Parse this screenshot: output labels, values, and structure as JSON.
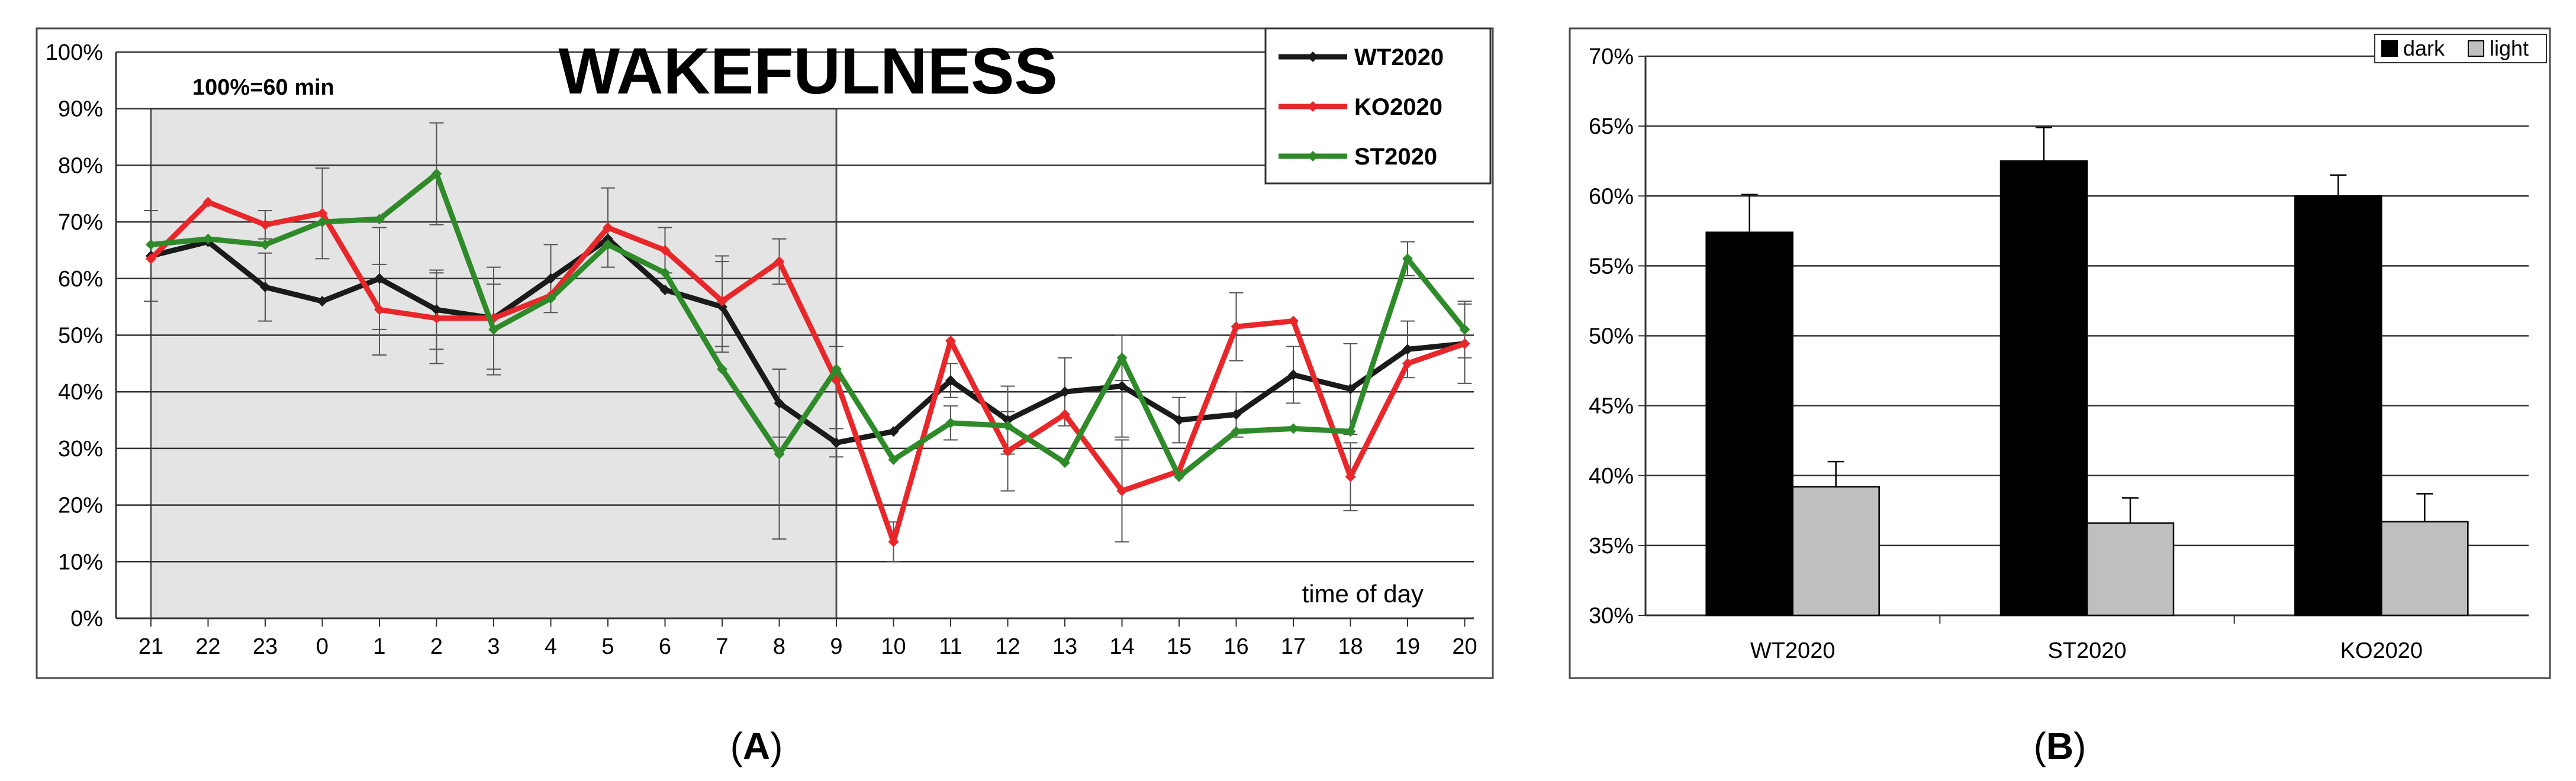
{
  "chart_data": [
    {
      "type": "line",
      "panel_label": "A",
      "title": "WAKEFULNESS",
      "note": "100%=60 min",
      "xlabel": "time of day",
      "ylim": [
        0,
        100
      ],
      "y_ticks": [
        "0%",
        "10%",
        "20%",
        "30%",
        "40%",
        "50%",
        "60%",
        "70%",
        "80%",
        "90%",
        "100%"
      ],
      "categories": [
        "21",
        "22",
        "23",
        "0",
        "1",
        "2",
        "3",
        "4",
        "5",
        "6",
        "7",
        "8",
        "9",
        "10",
        "11",
        "12",
        "13",
        "14",
        "15",
        "16",
        "17",
        "18",
        "19",
        "20"
      ],
      "dark_phase": [
        "21",
        "9"
      ],
      "grid": true,
      "legend_position": "top-right",
      "series": [
        {
          "name": "WT2020",
          "color": "#1a1a1a",
          "marker": "diamond",
          "values": [
            64,
            66.5,
            58.5,
            56,
            60,
            54.5,
            53,
            60,
            67,
            58,
            55,
            38,
            31,
            33,
            42,
            35,
            40,
            41,
            35,
            36,
            43,
            40.5,
            47.5,
            48.5
          ],
          "errors": [
            8,
            0,
            6,
            0,
            9,
            7,
            9,
            6,
            0,
            0,
            8,
            6,
            2.5,
            0,
            3,
            6,
            6,
            9,
            4,
            4,
            5,
            8,
            5,
            7
          ]
        },
        {
          "name": "KO2020",
          "color": "#e8272b",
          "marker": "diamond",
          "values": [
            63.5,
            73.5,
            69.5,
            71.5,
            54.5,
            53,
            53,
            57,
            69,
            65,
            56,
            63,
            42,
            13.5,
            49,
            29.5,
            36,
            22.5,
            26,
            51.5,
            52.5,
            25,
            45,
            48.5
          ],
          "errors": [
            0,
            0,
            2.5,
            8,
            8,
            8,
            0,
            0,
            7,
            4,
            8,
            4,
            0,
            3.5,
            0,
            7,
            0,
            9,
            0,
            6,
            0,
            6,
            0,
            0
          ]
        },
        {
          "name": "ST2020",
          "color": "#2f8a2a",
          "marker": "diamond",
          "values": [
            66,
            67,
            66,
            70,
            70.5,
            78.5,
            51,
            56.5,
            66,
            61,
            44,
            29,
            44,
            28,
            34.5,
            34,
            27.5,
            46,
            25,
            33,
            33.5,
            33,
            63.5,
            51
          ],
          "errors": [
            0,
            0,
            0,
            0,
            0,
            9,
            8,
            0,
            0,
            0,
            0,
            15,
            4,
            0,
            3,
            0,
            0,
            4,
            0,
            0,
            0,
            0,
            3,
            5
          ]
        }
      ]
    },
    {
      "type": "bar",
      "panel_label": "B",
      "categories": [
        "WT2020",
        "ST2020",
        "KO2020"
      ],
      "ylim": [
        30,
        70
      ],
      "y_ticks": [
        "30%",
        "35%",
        "40%",
        "45%",
        "50%",
        "55%",
        "60%",
        "65%",
        "70%"
      ],
      "legend_position": "top-right",
      "series": [
        {
          "name": "dark",
          "color": "#000000",
          "values": [
            57.4,
            62.5,
            60
          ],
          "errors": [
            2.7,
            2.4,
            1.5
          ]
        },
        {
          "name": "light",
          "color": "#bfbfbf",
          "values": [
            39.2,
            36.6,
            36.7
          ],
          "errors": [
            1.8,
            1.8,
            2
          ]
        }
      ]
    }
  ]
}
